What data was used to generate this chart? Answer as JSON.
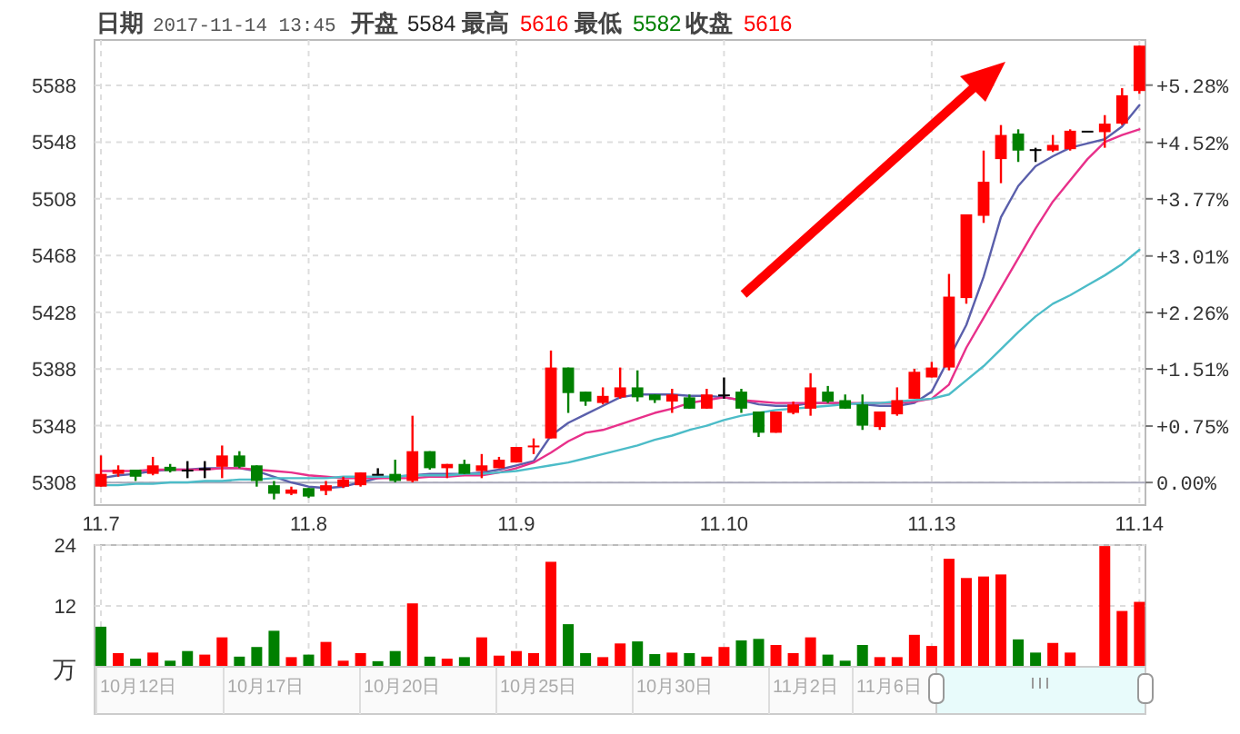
{
  "chart_data": [
    {
      "type": "candlestick",
      "annotations": [
        "日期",
        "2017-11-14 13:45",
        "开盘",
        "5584",
        "最高",
        "5616",
        "最低",
        "5582",
        "收盘",
        "5616"
      ],
      "categories": [
        "11.7",
        null,
        null,
        null,
        null,
        null,
        null,
        null,
        null,
        null,
        null,
        null,
        "11.8",
        null,
        null,
        null,
        null,
        null,
        null,
        null,
        null,
        null,
        null,
        null,
        "11.9",
        null,
        null,
        null,
        null,
        null,
        null,
        null,
        null,
        null,
        null,
        null,
        "11.10",
        null,
        null,
        null,
        null,
        null,
        null,
        null,
        null,
        null,
        null,
        null,
        "11.13",
        null,
        null,
        null,
        null,
        null,
        null,
        null,
        null,
        null,
        null,
        null,
        "11.14"
      ],
      "ohlc": [
        [
          5305,
          5327,
          5305,
          5314
        ],
        [
          5314,
          5320,
          5312,
          5317
        ],
        [
          5317,
          5317,
          5309,
          5312
        ],
        [
          5314,
          5326,
          5313,
          5320
        ],
        [
          5319,
          5321,
          5315,
          5316
        ],
        [
          5317,
          5323,
          5311,
          5317
        ],
        [
          5318,
          5323,
          5311,
          5318
        ],
        [
          5319,
          5334,
          5311,
          5327
        ],
        [
          5327,
          5330,
          5318,
          5319
        ],
        [
          5320,
          5320,
          5305,
          5309
        ],
        [
          5306,
          5309,
          5296,
          5300
        ],
        [
          5300,
          5305,
          5299,
          5303
        ],
        [
          5304,
          5304,
          5297,
          5298
        ],
        [
          5302,
          5309,
          5299,
          5306
        ],
        [
          5305,
          5312,
          5304,
          5310
        ],
        [
          5306,
          5315,
          5305,
          5315
        ],
        [
          5314,
          5318,
          5313,
          5314
        ],
        [
          5314,
          5324,
          5308,
          5309
        ],
        [
          5309,
          5355,
          5308,
          5330
        ],
        [
          5330,
          5330,
          5317,
          5318
        ],
        [
          5318,
          5321,
          5311,
          5321
        ],
        [
          5321,
          5324,
          5314,
          5314
        ],
        [
          5316,
          5328,
          5311,
          5320
        ],
        [
          5318,
          5326,
          5318,
          5324
        ],
        [
          5322,
          5333,
          5322,
          5333
        ],
        [
          5333,
          5339,
          5328,
          5334
        ],
        [
          5339,
          5401,
          5339,
          5389
        ],
        [
          5389,
          5389,
          5357,
          5371
        ],
        [
          5372,
          5372,
          5362,
          5365
        ],
        [
          5364,
          5375,
          5363,
          5369
        ],
        [
          5368,
          5389,
          5367,
          5375
        ],
        [
          5375,
          5387,
          5365,
          5368
        ],
        [
          5370,
          5370,
          5364,
          5366
        ],
        [
          5365,
          5374,
          5357,
          5370
        ],
        [
          5368,
          5370,
          5360,
          5360
        ],
        [
          5360,
          5374,
          5360,
          5370
        ],
        [
          5370,
          5382,
          5367,
          5370
        ],
        [
          5372,
          5374,
          5357,
          5360
        ],
        [
          5358,
          5358,
          5340,
          5343
        ],
        [
          5343,
          5358,
          5343,
          5358
        ],
        [
          5357,
          5365,
          5356,
          5363
        ],
        [
          5360,
          5385,
          5355,
          5375
        ],
        [
          5372,
          5376,
          5364,
          5365
        ],
        [
          5366,
          5370,
          5360,
          5360
        ],
        [
          5363,
          5370,
          5345,
          5348
        ],
        [
          5347,
          5358,
          5345,
          5358
        ],
        [
          5356,
          5375,
          5355,
          5366
        ],
        [
          5367,
          5388,
          5367,
          5386
        ],
        [
          5382,
          5393,
          5382,
          5389
        ],
        [
          5389,
          5455,
          5387,
          5439
        ],
        [
          5438,
          5497,
          5434,
          5497
        ],
        [
          5496,
          5542,
          5491,
          5520
        ],
        [
          5536,
          5560,
          5519,
          5553
        ],
        [
          5554,
          5557,
          5534,
          5542
        ],
        [
          5543,
          5544,
          5534,
          5543
        ],
        [
          5542,
          5553,
          5541,
          5546
        ],
        [
          5543,
          5557,
          5542,
          5556
        ],
        [
          5556,
          5556,
          5556,
          5556
        ],
        [
          5555,
          5567,
          5544,
          5561
        ],
        [
          5561,
          5586,
          5560,
          5581
        ],
        [
          5584,
          5616,
          5582,
          5616
        ]
      ],
      "colors": [
        "#ff0000",
        "#ff0000",
        "#008000",
        "#ff0000",
        "#008000",
        "#000000",
        "#000000",
        "#ff0000",
        "#008000",
        "#008000",
        "#008000",
        "#ff0000",
        "#008000",
        "#ff0000",
        "#ff0000",
        "#ff0000",
        "#000000",
        "#008000",
        "#ff0000",
        "#008000",
        "#ff0000",
        "#008000",
        "#ff0000",
        "#ff0000",
        "#ff0000",
        "#ff0000",
        "#ff0000",
        "#008000",
        "#008000",
        "#ff0000",
        "#ff0000",
        "#008000",
        "#008000",
        "#ff0000",
        "#008000",
        "#ff0000",
        "#000000",
        "#008000",
        "#008000",
        "#ff0000",
        "#ff0000",
        "#ff0000",
        "#008000",
        "#008000",
        "#008000",
        "#ff0000",
        "#ff0000",
        "#ff0000",
        "#ff0000",
        "#ff0000",
        "#ff0000",
        "#ff0000",
        "#ff0000",
        "#008000",
        "#000000",
        "#ff0000",
        "#ff0000",
        "#000000",
        "#ff0000",
        "#ff0000",
        "#ff0000"
      ],
      "series": [
        {
          "type": "line",
          "color": "#5a5fab",
          "values": [
            5311,
            5313,
            5314,
            5316,
            5317,
            5317,
            5318,
            5318,
            5318,
            5316,
            5312,
            5308,
            5305,
            5304,
            5305,
            5308,
            5311,
            5312,
            5313,
            5314,
            5314,
            5314,
            5315,
            5317,
            5320,
            5323,
            5341,
            5350,
            5356,
            5362,
            5368,
            5370,
            5370,
            5370,
            5369,
            5369,
            5368,
            5366,
            5363,
            5362,
            5362,
            5364,
            5364,
            5364,
            5363,
            5362,
            5362,
            5364,
            5372,
            null,
            5419,
            5453,
            5495,
            5517,
            5531,
            5538,
            5544,
            5547,
            5550,
            5559,
            5574
          ]
        },
        {
          "type": "line",
          "color": "#e8308a",
          "values": [
            5316,
            5316,
            5316,
            5317,
            5317,
            5317,
            5317,
            5318,
            5318,
            5317,
            5316,
            5315,
            5313,
            5312,
            5311,
            5311,
            5311,
            5311,
            5311,
            5312,
            5312,
            5313,
            5313,
            5315,
            5318,
            5322,
            5329,
            5337,
            5343,
            5345,
            5349,
            5353,
            5357,
            5360,
            5364,
            5366,
            5368,
            5366,
            5365,
            5364,
            5364,
            5364,
            5364,
            5364,
            5364,
            5364,
            5364,
            5365,
            5367,
            5377,
            5403,
            5424,
            5445,
            5466,
            5487,
            5506,
            5521,
            5536,
            5548,
            5553,
            5557
          ]
        },
        {
          "type": "line",
          "color": "#4cbcc8",
          "values": [
            5306,
            5306,
            5307,
            5307,
            5308,
            5308,
            5309,
            5309,
            5310,
            5310,
            5311,
            5311,
            5311,
            5311,
            5312,
            5312,
            5312,
            5312,
            5313,
            5313,
            5313,
            5314,
            5314,
            5315,
            5316,
            5318,
            5320,
            5322,
            5325,
            5328,
            5331,
            5334,
            5338,
            5341,
            5345,
            5348,
            5352,
            5355,
            5357,
            5359,
            5360,
            5361,
            5362,
            5363,
            5364,
            5364,
            5365,
            5366,
            5367,
            5370,
            5380,
            5390,
            5402,
            5414,
            5425,
            5434,
            5440,
            5447,
            5454,
            5462,
            5472
          ]
        }
      ],
      "ylim": [
        5292,
        5620
      ],
      "yticks": [
        5308,
        5348,
        5388,
        5428,
        5468,
        5508,
        5548,
        5588
      ],
      "y2lim": [
        -0.3,
        5.88
      ],
      "y2ticks": [
        {
          "value": 0,
          "label": "0.00%"
        },
        {
          "value": 0.75,
          "label": "+0.75%"
        },
        {
          "value": 1.51,
          "label": "+1.51%"
        },
        {
          "value": 2.26,
          "label": "+2.26%"
        },
        {
          "value": 3.01,
          "label": "+3.01%"
        },
        {
          "value": 3.77,
          "label": "+3.77%"
        },
        {
          "value": 4.52,
          "label": "+4.52%"
        },
        {
          "value": 5.28,
          "label": "+5.28%"
        }
      ],
      "grid": true
    },
    {
      "type": "bar",
      "annotations": [
        "10月12日",
        "10月17日",
        "10月20日",
        "10月25日",
        "10月30日",
        "11月2日",
        "11月6日"
      ],
      "categories": [
        null,
        null,
        null,
        null,
        null,
        null,
        null,
        null,
        null,
        null,
        null,
        null,
        null,
        null,
        null,
        null,
        null,
        null,
        null,
        null,
        null,
        null,
        null,
        null,
        null,
        null,
        null,
        null,
        null,
        null,
        null,
        null,
        null,
        null,
        null,
        null,
        null,
        null,
        null,
        null,
        null,
        null,
        null,
        null,
        null,
        null,
        null,
        null,
        null,
        null,
        null,
        null,
        null,
        null,
        null,
        null,
        null,
        null,
        null,
        null,
        null
      ],
      "values": [
        7.9,
        2.7,
        1.6,
        2.8,
        1.2,
        3.1,
        2.4,
        5.8,
        2.0,
        3.9,
        7.1,
        1.9,
        2.4,
        4.9,
        1.2,
        2.7,
        1.1,
        3.1,
        12.5,
        2.0,
        1.6,
        1.9,
        5.8,
        2.2,
        3.1,
        2.7,
        20.7,
        8.4,
        2.7,
        1.9,
        4.6,
        5.0,
        2.5,
        2.8,
        2.7,
        2.0,
        3.9,
        5.2,
        5.5,
        4.3,
        2.7,
        5.8,
        2.4,
        1.2,
        4.3,
        1.9,
        1.9,
        6.3,
        4.1,
        21.3,
        17.5,
        17.8,
        18.2,
        5.4,
        2.8,
        4.7,
        2.8,
        0,
        23.8,
        11.0,
        12.8
      ],
      "colors": [
        "#008000",
        "#ff0000",
        "#008000",
        "#ff0000",
        "#008000",
        "#008000",
        "#ff0000",
        "#ff0000",
        "#008000",
        "#008000",
        "#008000",
        "#ff0000",
        "#008000",
        "#ff0000",
        "#ff0000",
        "#ff0000",
        "#008000",
        "#008000",
        "#ff0000",
        "#008000",
        "#ff0000",
        "#008000",
        "#ff0000",
        "#ff0000",
        "#ff0000",
        "#ff0000",
        "#ff0000",
        "#008000",
        "#008000",
        "#ff0000",
        "#ff0000",
        "#008000",
        "#008000",
        "#ff0000",
        "#008000",
        "#ff0000",
        "#ff0000",
        "#008000",
        "#008000",
        "#ff0000",
        "#ff0000",
        "#ff0000",
        "#008000",
        "#008000",
        "#008000",
        "#ff0000",
        "#ff0000",
        "#ff0000",
        "#ff0000",
        "#ff0000",
        "#ff0000",
        "#ff0000",
        "#ff0000",
        "#008000",
        "#008000",
        "#ff0000",
        "#ff0000",
        "#000000",
        "#ff0000",
        "#ff0000",
        "#ff0000"
      ],
      "ylim": [
        0,
        24
      ],
      "yticks": [
        {
          "value": 0,
          "label": "万"
        },
        12,
        24
      ],
      "grid": true
    }
  ]
}
